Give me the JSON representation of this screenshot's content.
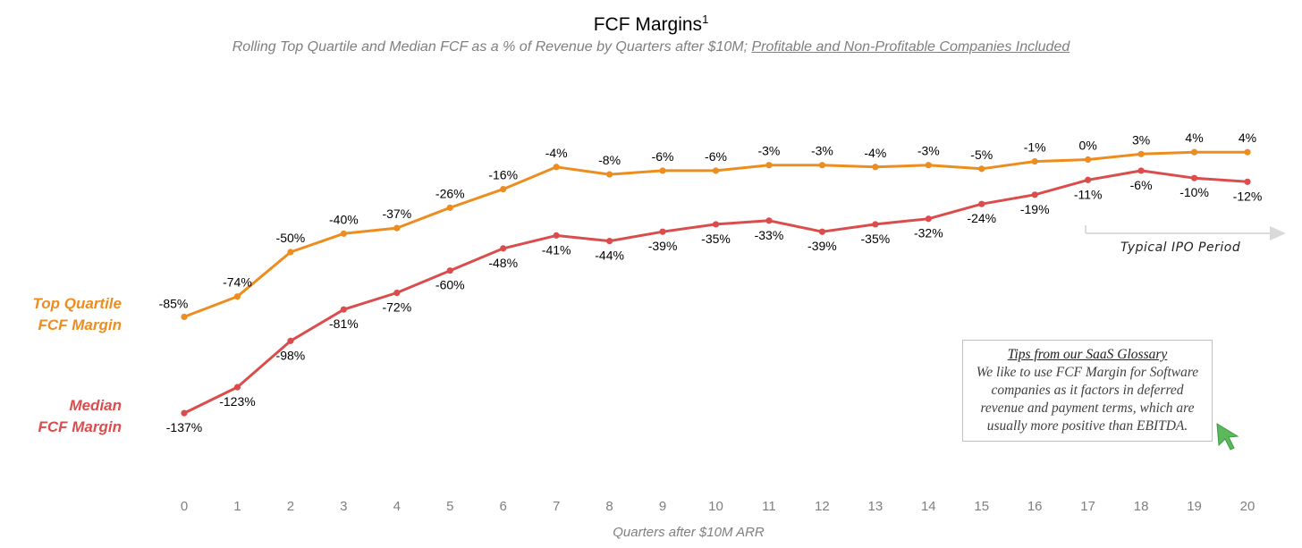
{
  "title": "FCF Margins",
  "title_footnote": "1",
  "subtitle_plain": "Rolling Top Quartile and Median FCF as a % of Revenue by Quarters after $10M; ",
  "subtitle_underlined": "Profitable and Non-Profitable Companies Included",
  "labels": {
    "top_quartile_line1": "Top Quartile",
    "top_quartile_line2": "FCF Margin",
    "median_line1": "Median",
    "median_line2": "FCF Margin"
  },
  "ipo_period_label": "Typical IPO Period",
  "tips": {
    "title": "Tips from our SaaS Glossary",
    "line1": "We like to use FCF Margin for Software",
    "line2": "companies as it factors in deferred",
    "line3": "revenue and payment terms, which are",
    "line4": "usually more positive than EBITDA.",
    "icon": "cursor-arrow-icon"
  },
  "colors": {
    "top_quartile": "#ee8d1f",
    "median": "#db4d4d",
    "axis_text": "#7f7f7f",
    "tips_cursor": "#5cb85c"
  },
  "chart_data": {
    "type": "line",
    "title": "FCF Margins",
    "xlabel": "Quarters after $10M ARR",
    "ylabel": "",
    "x": [
      0,
      1,
      2,
      3,
      4,
      5,
      6,
      7,
      8,
      9,
      10,
      11,
      12,
      13,
      14,
      15,
      16,
      17,
      18,
      19,
      20
    ],
    "ylim": [
      -150,
      10
    ],
    "grid": false,
    "legend": "left-side labels",
    "series": [
      {
        "name": "Top Quartile FCF Margin",
        "values": [
          -85,
          -74,
          -50,
          -40,
          -37,
          -26,
          -16,
          -4,
          -8,
          -6,
          -6,
          -3,
          -3,
          -4,
          -3,
          -5,
          -1,
          0,
          3,
          4,
          4
        ],
        "labels": [
          "-85%",
          "-74%",
          "-50%",
          "-40%",
          "-37%",
          "-26%",
          "-16%",
          "-4%",
          "-8%",
          "-6%",
          "-6%",
          "-3%",
          "-3%",
          "-4%",
          "-3%",
          "-5%",
          "-1%",
          "0%",
          "3%",
          "4%",
          "4%"
        ]
      },
      {
        "name": "Median FCF Margin",
        "values": [
          -137,
          -123,
          -98,
          -81,
          -72,
          -60,
          -48,
          -41,
          -44,
          -39,
          -35,
          -33,
          -39,
          -35,
          -32,
          -24,
          -19,
          -11,
          -6,
          -10,
          -12
        ],
        "labels": [
          "-137%",
          "-123%",
          "-98%",
          "-81%",
          "-72%",
          "-60%",
          "-48%",
          "-41%",
          "-44%",
          "-39%",
          "-35%",
          "-33%",
          "-39%",
          "-35%",
          "-32%",
          "-24%",
          "-19%",
          "-11%",
          "-6%",
          "-10%",
          "-12%"
        ]
      }
    ],
    "annotations": [
      "Typical IPO Period"
    ]
  }
}
